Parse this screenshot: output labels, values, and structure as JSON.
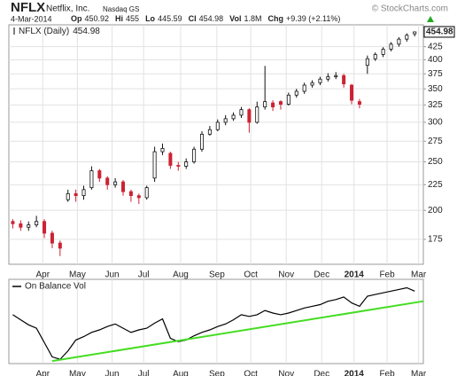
{
  "chart_data": [
    {
      "type": "candlestick",
      "title": "NFLX",
      "company": "Netflix, Inc.",
      "exchange": "Nasdaq GS",
      "source": "© StockCharts.com",
      "date": "4-Mar-2014",
      "quote": [
        {
          "label": "Op",
          "value": 450.92
        },
        {
          "label": "Hi",
          "value": 455.0
        },
        {
          "label": "Lo",
          "value": 445.59
        },
        {
          "label": "Cl",
          "value": 454.98
        },
        {
          "label": "Vol",
          "value": "1.8M"
        },
        {
          "label": "Chg",
          "value": "+9.39 (+2.11%)"
        }
      ],
      "series_name": "NFLX (Daily)",
      "open": [
        190,
        188,
        185,
        187,
        190,
        180,
        172,
        210,
        216,
        214,
        222,
        240,
        232,
        225,
        228,
        218,
        214,
        212,
        232,
        262,
        260,
        246,
        245,
        250,
        265,
        284,
        290,
        300,
        305,
        310,
        318,
        300,
        322,
        328,
        330,
        326,
        340,
        346,
        356,
        360,
        366,
        370,
        372,
        356,
        330,
        390,
        402,
        410,
        420,
        430,
        440,
        450.92
      ],
      "high": [
        192,
        191,
        190,
        195,
        192,
        182,
        174,
        220,
        220,
        224,
        245,
        242,
        234,
        232,
        230,
        220,
        216,
        224,
        268,
        272,
        262,
        250,
        254,
        268,
        288,
        295,
        304,
        310,
        314,
        322,
        320,
        330,
        389,
        332,
        332,
        344,
        350,
        360,
        364,
        370,
        376,
        378,
        375,
        358,
        334,
        408,
        414,
        424,
        434,
        444,
        452,
        455
      ],
      "low": [
        184,
        182,
        182,
        185,
        176,
        168,
        162,
        208,
        208,
        210,
        220,
        228,
        220,
        222,
        214,
        208,
        206,
        210,
        228,
        258,
        242,
        240,
        242,
        248,
        262,
        282,
        288,
        296,
        302,
        306,
        286,
        298,
        318,
        316,
        318,
        324,
        336,
        342,
        352,
        356,
        362,
        366,
        352,
        326,
        320,
        375,
        398,
        405,
        416,
        425,
        435,
        445.59
      ],
      "close": [
        188,
        185,
        187,
        190,
        180,
        172,
        168,
        216,
        214,
        220,
        240,
        232,
        225,
        228,
        218,
        214,
        212,
        222,
        262,
        266,
        246,
        245,
        250,
        265,
        284,
        290,
        300,
        305,
        310,
        318,
        300,
        322,
        330,
        322,
        326,
        340,
        346,
        356,
        360,
        366,
        370,
        372,
        358,
        332,
        326,
        402,
        410,
        420,
        430,
        440,
        448,
        454.98
      ],
      "up_color": "#111111",
      "down_color": "#cc2233",
      "log_scale": true,
      "ylim": [
        156,
        470
      ],
      "yticks": [
        175,
        200,
        225,
        250,
        275,
        300,
        325,
        350,
        375,
        400,
        425
      ],
      "xlim": [
        -0.5,
        52.1
      ],
      "xticks": [
        {
          "value": 3.8,
          "label": "Apr"
        },
        {
          "value": 8.2,
          "label": "May"
        },
        {
          "value": 12.6,
          "label": "Jun"
        },
        {
          "value": 16.6,
          "label": "Jul"
        },
        {
          "value": 21.3,
          "label": "Aug"
        },
        {
          "value": 25.9,
          "label": "Sep"
        },
        {
          "value": 30.2,
          "label": "Oct"
        },
        {
          "value": 34.7,
          "label": "Nov"
        },
        {
          "value": 39.2,
          "label": "Dec"
        },
        {
          "value": 43.3,
          "label": "2014"
        },
        {
          "value": 47.5,
          "label": "Feb"
        },
        {
          "value": 51.5,
          "label": "Mar"
        }
      ],
      "grid": true
    },
    {
      "type": "line",
      "series": [
        {
          "name": "On Balance Vol",
          "color": "#000000",
          "values": [
            58,
            52,
            46,
            42,
            25,
            8,
            5,
            15,
            28,
            32,
            37,
            40,
            44,
            47,
            42,
            37,
            40,
            42,
            48,
            53,
            30,
            26,
            28,
            33,
            37,
            40,
            44,
            47,
            52,
            58,
            56,
            58,
            63,
            60,
            58,
            60,
            63,
            66,
            68,
            70,
            74,
            76,
            79,
            72,
            68,
            80,
            82,
            84,
            86,
            88,
            90,
            86
          ]
        },
        {
          "color": "#44dd22",
          "x": [
            5,
            52.1
          ],
          "values": [
            3,
            74
          ]
        }
      ],
      "ylim": [
        0,
        100
      ],
      "xlim": [
        -0.5,
        52.1
      ],
      "xticks": [
        {
          "value": 3.8,
          "label": "Apr"
        },
        {
          "value": 8.2,
          "label": "May"
        },
        {
          "value": 12.6,
          "label": "Jun"
        },
        {
          "value": 16.6,
          "label": "Jul"
        },
        {
          "value": 21.3,
          "label": "Aug"
        },
        {
          "value": 25.9,
          "label": "Sep"
        },
        {
          "value": 30.2,
          "label": "Oct"
        },
        {
          "value": 34.7,
          "label": "Nov"
        },
        {
          "value": 39.2,
          "label": "Dec"
        },
        {
          "value": 43.3,
          "label": "2014"
        },
        {
          "value": 47.5,
          "label": "Feb"
        },
        {
          "value": 51.5,
          "label": "Mar"
        }
      ],
      "grid": true
    }
  ]
}
